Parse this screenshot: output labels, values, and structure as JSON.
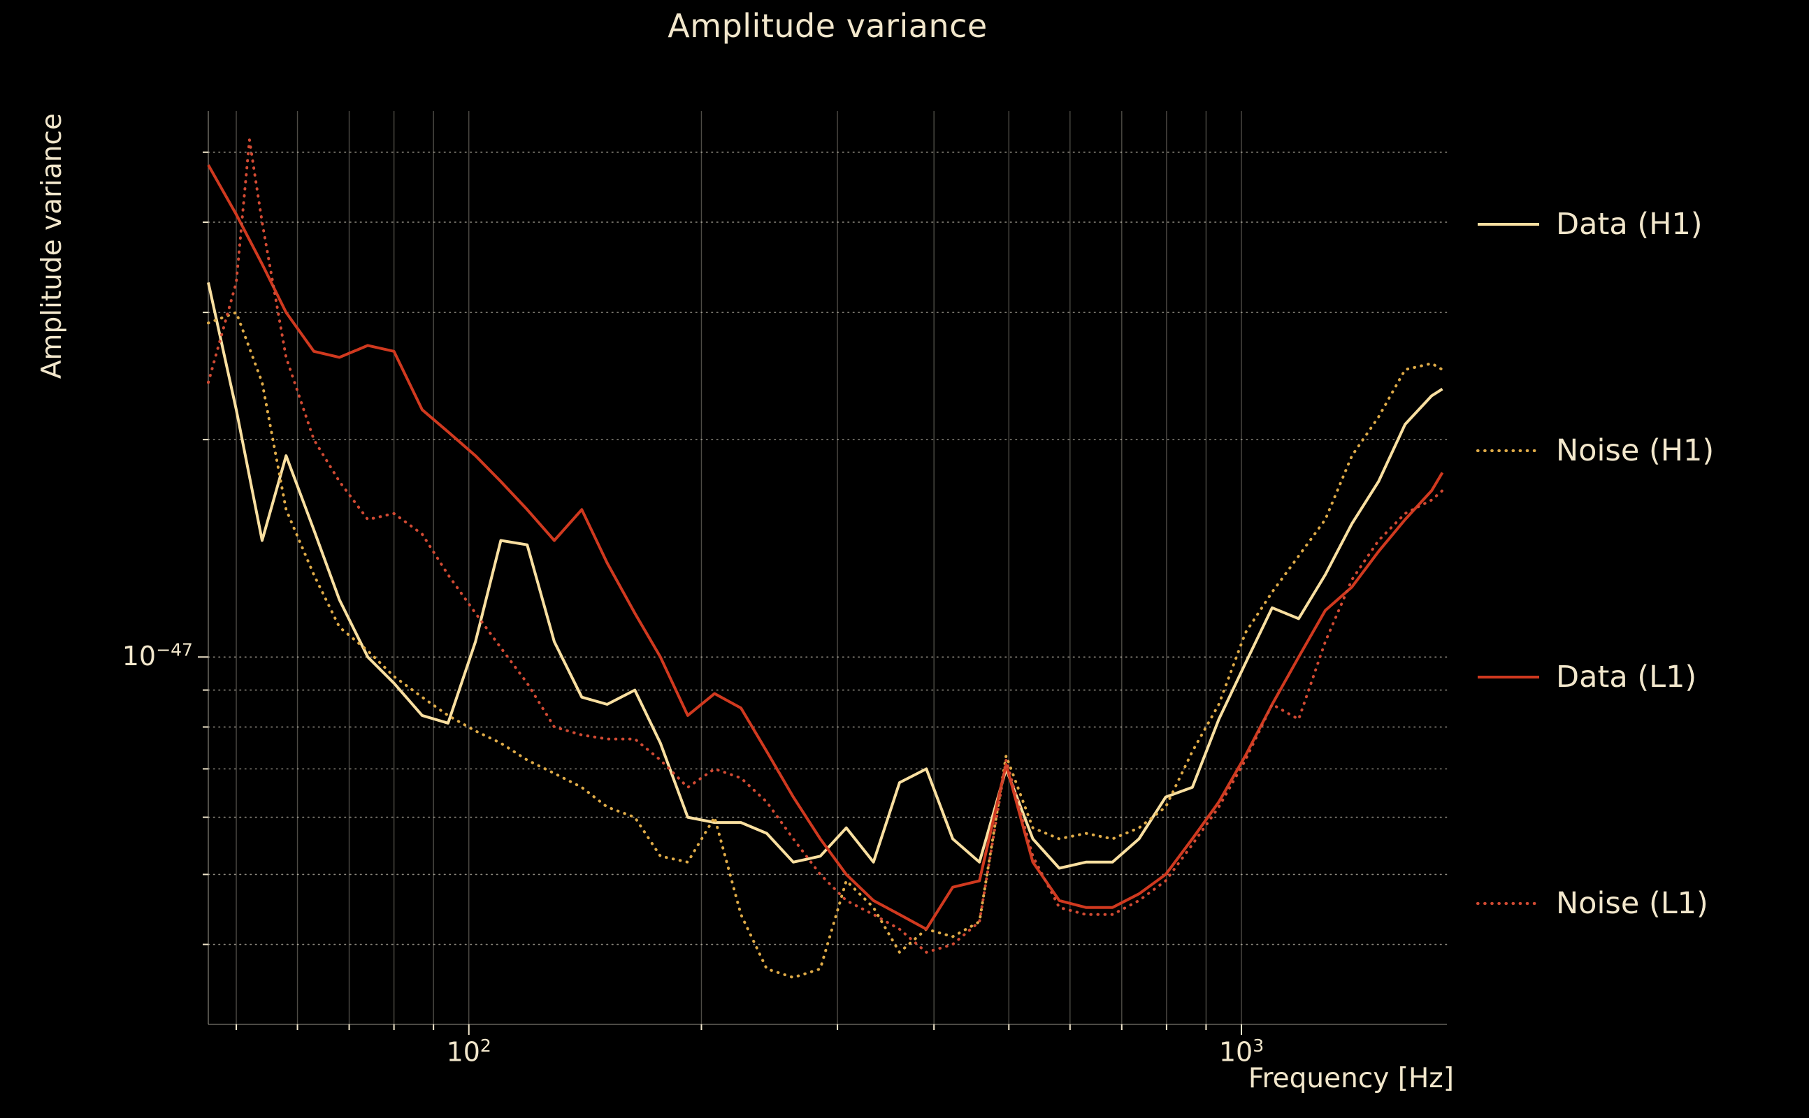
{
  "title": "Amplitude variance",
  "colors": {
    "background": "#000000",
    "text": "#f2e7cc",
    "data_h1": "#f9dfa0",
    "noise_h1": "#dfab48",
    "data_l1": "#d0391f",
    "noise_l1": "#d14a33"
  },
  "legend": {
    "position": "right-outside",
    "entries": [
      {
        "id": "data-h1",
        "label": "Data (H1)",
        "style": "solid",
        "color": "#f9dfa0"
      },
      {
        "id": "noise-h1",
        "label": "Noise (H1)",
        "style": "dotted",
        "color": "#dfab48"
      },
      {
        "id": "data-l1",
        "label": "Data (L1)",
        "style": "solid",
        "color": "#d0391f"
      },
      {
        "id": "noise-l1",
        "label": "Noise (L1)",
        "style": "dotted",
        "color": "#d14a33"
      }
    ]
  },
  "chart_data": {
    "type": "line",
    "title": "Amplitude variance",
    "xlabel": "Frequency [Hz]",
    "ylabel": "Amplitude variance",
    "x_scale": "log",
    "y_scale": "log",
    "xlim": [
      46,
      1845
    ],
    "ylim": [
      3.1e-48,
      5.7e-47
    ],
    "grid": "both axes, minor and major",
    "legend_position": "right outside plot",
    "x_ticks": [
      {
        "value": 100,
        "base": "10",
        "exp": "2"
      },
      {
        "value": 1000,
        "base": "10",
        "exp": "3"
      }
    ],
    "y_ticks": [
      {
        "value": 1e-47,
        "base": "10",
        "exp": "−47"
      }
    ],
    "x_gridlines": [
      50,
      60,
      70,
      80,
      90,
      100,
      200,
      300,
      400,
      500,
      600,
      700,
      800,
      900,
      1000
    ],
    "y_gridlines": [
      4e-48,
      5e-48,
      6e-48,
      7e-48,
      8e-48,
      9e-48,
      1e-47,
      2e-47,
      3e-47,
      4e-47,
      5e-47
    ],
    "series": [
      {
        "id": "data-h1",
        "name": "Data (H1)",
        "style": "solid",
        "color": "#f9dfa0",
        "x": [
          46,
          50,
          54,
          58,
          63,
          68,
          74,
          80,
          87,
          94,
          102,
          110,
          119,
          129,
          140,
          151,
          164,
          177,
          192,
          208,
          225,
          243,
          263,
          285,
          308,
          334,
          361,
          391,
          423,
          458,
          496,
          537,
          581,
          629,
          681,
          737,
          798,
          864,
          935,
          1012,
          1096,
          1186,
          1284,
          1390,
          1505,
          1629,
          1763,
          1820
        ],
        "y": [
          3.3e-47,
          2.2e-47,
          1.45e-47,
          1.9e-47,
          1.5e-47,
          1.2e-47,
          1e-47,
          9.2e-48,
          8.3e-48,
          8.1e-48,
          1.05e-47,
          1.45e-47,
          1.43e-47,
          1.05e-47,
          8.8e-48,
          8.6e-48,
          9e-48,
          7.6e-48,
          6e-48,
          5.9e-48,
          5.9e-48,
          5.7e-48,
          5.2e-48,
          5.3e-48,
          5.8e-48,
          5.2e-48,
          6.7e-48,
          7e-48,
          5.6e-48,
          5.2e-48,
          7e-48,
          5.6e-48,
          5.1e-48,
          5.2e-48,
          5.2e-48,
          5.6e-48,
          6.4e-48,
          6.6e-48,
          8.2e-48,
          9.8e-48,
          1.17e-47,
          1.13e-47,
          1.3e-47,
          1.53e-47,
          1.75e-47,
          2.1e-47,
          2.3e-47,
          2.35e-47
        ]
      },
      {
        "id": "noise-h1",
        "name": "Noise (H1)",
        "style": "dotted",
        "color": "#dfab48",
        "x": [
          46,
          50,
          54,
          58,
          63,
          68,
          74,
          80,
          87,
          94,
          102,
          110,
          119,
          129,
          140,
          151,
          164,
          177,
          192,
          208,
          225,
          243,
          263,
          285,
          308,
          334,
          361,
          391,
          423,
          458,
          496,
          537,
          581,
          629,
          681,
          737,
          798,
          864,
          935,
          1012,
          1096,
          1186,
          1284,
          1390,
          1505,
          1629,
          1763,
          1820
        ],
        "y": [
          2.9e-47,
          3e-47,
          2.4e-47,
          1.6e-47,
          1.3e-47,
          1.1e-47,
          1.02e-47,
          9.4e-48,
          8.8e-48,
          8.3e-48,
          7.9e-48,
          7.6e-48,
          7.2e-48,
          6.9e-48,
          6.6e-48,
          6.2e-48,
          6e-48,
          5.3e-48,
          5.2e-48,
          6e-48,
          4.4e-48,
          3.7e-48,
          3.6e-48,
          3.7e-48,
          4.9e-48,
          4.5e-48,
          3.9e-48,
          4.2e-48,
          4.1e-48,
          4.3e-48,
          7.3e-48,
          5.8e-48,
          5.6e-48,
          5.7e-48,
          5.6e-48,
          5.8e-48,
          6.2e-48,
          7.4e-48,
          8.6e-48,
          1.08e-47,
          1.23e-47,
          1.38e-47,
          1.55e-47,
          1.9e-47,
          2.15e-47,
          2.5e-47,
          2.55e-47,
          2.5e-47
        ]
      },
      {
        "id": "data-l1",
        "name": "Data (L1)",
        "style": "solid",
        "color": "#d0391f",
        "x": [
          46,
          50,
          54,
          58,
          63,
          68,
          74,
          80,
          87,
          94,
          102,
          110,
          119,
          129,
          140,
          151,
          164,
          177,
          192,
          208,
          225,
          243,
          263,
          285,
          308,
          334,
          361,
          391,
          423,
          458,
          496,
          537,
          581,
          629,
          681,
          737,
          798,
          864,
          935,
          1012,
          1096,
          1186,
          1284,
          1390,
          1505,
          1629,
          1763,
          1820
        ],
        "y": [
          4.8e-47,
          4.1e-47,
          3.5e-47,
          3e-47,
          2.65e-47,
          2.6e-47,
          2.7e-47,
          2.65e-47,
          2.2e-47,
          2.05e-47,
          1.9e-47,
          1.75e-47,
          1.6e-47,
          1.45e-47,
          1.6e-47,
          1.35e-47,
          1.15e-47,
          1e-47,
          8.3e-48,
          8.9e-48,
          8.5e-48,
          7.4e-48,
          6.4e-48,
          5.6e-48,
          5e-48,
          4.6e-48,
          4.4e-48,
          4.2e-48,
          4.8e-48,
          4.9e-48,
          7.1e-48,
          5.2e-48,
          4.6e-48,
          4.5e-48,
          4.5e-48,
          4.7e-48,
          5e-48,
          5.6e-48,
          6.3e-48,
          7.3e-48,
          8.6e-48,
          1e-47,
          1.16e-47,
          1.25e-47,
          1.4e-47,
          1.55e-47,
          1.7e-47,
          1.8e-47
        ]
      },
      {
        "id": "noise-l1",
        "name": "Noise (L1)",
        "style": "dotted",
        "color": "#d14a33",
        "x": [
          46,
          50,
          52,
          54,
          58,
          63,
          68,
          74,
          80,
          87,
          94,
          102,
          110,
          119,
          129,
          140,
          151,
          164,
          177,
          192,
          208,
          225,
          243,
          263,
          285,
          308,
          334,
          361,
          391,
          423,
          458,
          496,
          537,
          581,
          629,
          681,
          737,
          798,
          864,
          935,
          1012,
          1096,
          1186,
          1284,
          1390,
          1505,
          1629,
          1763,
          1820
        ],
        "y": [
          2.4e-47,
          3.3e-47,
          5.2e-47,
          4e-47,
          2.6e-47,
          2e-47,
          1.75e-47,
          1.55e-47,
          1.58e-47,
          1.48e-47,
          1.3e-47,
          1.15e-47,
          1.03e-47,
          9.2e-48,
          8e-48,
          7.8e-48,
          7.7e-48,
          7.7e-48,
          7.2e-48,
          6.6e-48,
          7e-48,
          6.8e-48,
          6.3e-48,
          5.6e-48,
          5e-48,
          4.6e-48,
          4.4e-48,
          4.2e-48,
          3.9e-48,
          4e-48,
          4.3e-48,
          7.2e-48,
          5.3e-48,
          4.5e-48,
          4.4e-48,
          4.4e-48,
          4.6e-48,
          4.9e-48,
          5.5e-48,
          6.2e-48,
          7.2e-48,
          8.6e-48,
          8.2e-48,
          1.05e-47,
          1.28e-47,
          1.45e-47,
          1.58e-47,
          1.65e-47,
          1.7e-47
        ]
      }
    ]
  }
}
